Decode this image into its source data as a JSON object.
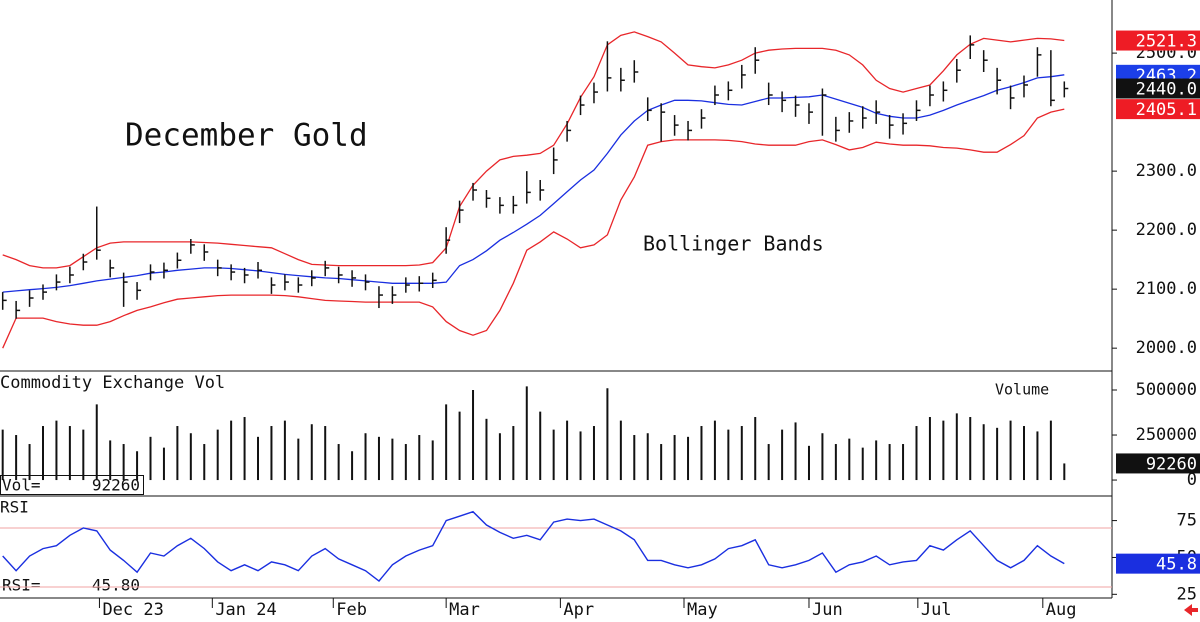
{
  "chart_data": [
    {
      "type": "ohlc",
      "title": "December Gold",
      "annotation": "Bollinger Bands",
      "ylim": [
        1963,
        2590
      ],
      "yticks": [
        {
          "value": 2000,
          "label": "2000.0"
        },
        {
          "value": 2100,
          "label": "2100.0"
        },
        {
          "value": 2200,
          "label": "2200.0"
        },
        {
          "value": 2300,
          "label": "2300.0"
        },
        {
          "value": 2500,
          "label": "2500.0"
        }
      ],
      "color": "#111111",
      "band_color": "#e8262a",
      "mid_color": "#1a2fe0",
      "high": [
        2095,
        2080,
        2098,
        2108,
        2125,
        2138,
        2160,
        2240,
        2150,
        2128,
        2112,
        2142,
        2145,
        2162,
        2185,
        2176,
        2150,
        2142,
        2136,
        2146,
        2120,
        2125,
        2120,
        2132,
        2148,
        2138,
        2132,
        2125,
        2105,
        2105,
        2120,
        2122,
        2128,
        2205,
        2250,
        2280,
        2268,
        2256,
        2258,
        2300,
        2285,
        2340,
        2385,
        2428,
        2450,
        2520,
        2475,
        2488,
        2425,
        2415,
        2395,
        2385,
        2405,
        2445,
        2452,
        2480,
        2510,
        2450,
        2435,
        2428,
        2415,
        2440,
        2392,
        2400,
        2410,
        2420,
        2395,
        2398,
        2420,
        2445,
        2452,
        2490,
        2530,
        2505,
        2475,
        2445,
        2462,
        2510,
        2505,
        2452
      ],
      "low": [
        2065,
        2050,
        2070,
        2082,
        2098,
        2110,
        2132,
        2150,
        2120,
        2070,
        2082,
        2115,
        2118,
        2135,
        2160,
        2148,
        2122,
        2115,
        2110,
        2118,
        2092,
        2098,
        2094,
        2105,
        2122,
        2110,
        2104,
        2098,
        2068,
        2075,
        2094,
        2096,
        2102,
        2160,
        2212,
        2250,
        2238,
        2228,
        2228,
        2245,
        2250,
        2295,
        2350,
        2395,
        2415,
        2435,
        2435,
        2450,
        2385,
        2350,
        2360,
        2352,
        2372,
        2412,
        2420,
        2440,
        2465,
        2412,
        2400,
        2392,
        2380,
        2360,
        2350,
        2365,
        2372,
        2380,
        2355,
        2362,
        2385,
        2410,
        2418,
        2450,
        2490,
        2468,
        2430,
        2405,
        2425,
        2460,
        2410,
        2425
      ],
      "close": [
        2081,
        2064,
        2085,
        2095,
        2112,
        2124,
        2146,
        2166,
        2136,
        2112,
        2098,
        2129,
        2132,
        2149,
        2175,
        2163,
        2136,
        2129,
        2124,
        2132,
        2107,
        2112,
        2107,
        2119,
        2136,
        2124,
        2119,
        2112,
        2090,
        2090,
        2107,
        2110,
        2115,
        2183,
        2234,
        2268,
        2254,
        2242,
        2242,
        2264,
        2268,
        2319,
        2369,
        2412,
        2434,
        2458,
        2454,
        2468,
        2403,
        2400,
        2378,
        2369,
        2390,
        2429,
        2437,
        2463,
        2488,
        2429,
        2420,
        2412,
        2400,
        2429,
        2369,
        2385,
        2390,
        2400,
        2378,
        2381,
        2403,
        2429,
        2437,
        2471,
        2514,
        2488,
        2454,
        2424,
        2446,
        2497,
        2420,
        2440
      ],
      "upper": [
        2158,
        2150,
        2140,
        2136,
        2136,
        2140,
        2155,
        2170,
        2178,
        2180,
        2180,
        2180,
        2180,
        2180,
        2180,
        2179,
        2178,
        2176,
        2174,
        2172,
        2170,
        2160,
        2150,
        2142,
        2141,
        2140,
        2140,
        2140,
        2140,
        2140,
        2140,
        2141,
        2145,
        2170,
        2240,
        2276,
        2300,
        2319,
        2325,
        2327,
        2330,
        2344,
        2380,
        2425,
        2460,
        2514,
        2530,
        2536,
        2528,
        2519,
        2500,
        2480,
        2477,
        2475,
        2480,
        2488,
        2500,
        2505,
        2507,
        2508,
        2508,
        2508,
        2505,
        2497,
        2480,
        2454,
        2440,
        2434,
        2440,
        2446,
        2470,
        2497,
        2515,
        2525,
        2522,
        2519,
        2522,
        2525,
        2524,
        2521.3
      ],
      "middle": [
        2095,
        2097,
        2099,
        2101,
        2103,
        2106,
        2110,
        2114,
        2117,
        2120,
        2123,
        2127,
        2129,
        2132,
        2134,
        2136,
        2136,
        2135,
        2133,
        2131,
        2128,
        2125,
        2123,
        2121,
        2119,
        2118,
        2116,
        2114,
        2112,
        2110,
        2110,
        2110,
        2110,
        2112,
        2140,
        2150,
        2165,
        2183,
        2196,
        2210,
        2225,
        2245,
        2265,
        2285,
        2302,
        2330,
        2361,
        2385,
        2403,
        2412,
        2420,
        2420,
        2419,
        2416,
        2413,
        2412,
        2418,
        2424,
        2424,
        2425,
        2426,
        2429,
        2422,
        2415,
        2408,
        2398,
        2393,
        2390,
        2390,
        2395,
        2403,
        2412,
        2420,
        2428,
        2437,
        2443,
        2450,
        2458,
        2460,
        2463.2
      ],
      "lower": [
        2000,
        2051,
        2051,
        2051,
        2045,
        2041,
        2039,
        2039,
        2045,
        2055,
        2064,
        2070,
        2077,
        2083,
        2085,
        2087,
        2089,
        2090,
        2090,
        2090,
        2090,
        2089,
        2087,
        2084,
        2081,
        2080,
        2079,
        2078,
        2078,
        2078,
        2078,
        2078,
        2070,
        2045,
        2030,
        2022,
        2030,
        2064,
        2110,
        2166,
        2180,
        2197,
        2185,
        2170,
        2175,
        2192,
        2251,
        2290,
        2344,
        2350,
        2353,
        2353,
        2353,
        2353,
        2352,
        2350,
        2346,
        2344,
        2344,
        2344,
        2350,
        2353,
        2345,
        2336,
        2340,
        2349,
        2346,
        2344,
        2344,
        2343,
        2340,
        2339,
        2336,
        2332,
        2332,
        2345,
        2360,
        2390,
        2400,
        2405.1
      ],
      "boxes": [
        {
          "value": 2521.3,
          "label": "2521.3",
          "color": "#ee1c25"
        },
        {
          "value": 2463.2,
          "label": "2463.2",
          "color": "#1c3fe8"
        },
        {
          "value": 2440,
          "label": "2440.0",
          "color": "#111111"
        },
        {
          "value": 2405.1,
          "label": "2405.1",
          "color": "#ee1c25"
        }
      ]
    },
    {
      "type": "bar",
      "title": "Commodity Exchange Vol",
      "legend": "Volume",
      "ylim": [
        -83000,
        600000
      ],
      "yticks": [
        0,
        250000,
        500000
      ],
      "color": "#111111",
      "values": [
        280000,
        250000,
        200000,
        300000,
        330000,
        300000,
        280000,
        420000,
        220000,
        200000,
        160000,
        240000,
        180000,
        300000,
        260000,
        200000,
        280000,
        330000,
        350000,
        240000,
        300000,
        330000,
        230000,
        310000,
        300000,
        200000,
        160000,
        260000,
        240000,
        230000,
        200000,
        250000,
        220000,
        420000,
        380000,
        500000,
        340000,
        260000,
        300000,
        520000,
        380000,
        280000,
        330000,
        270000,
        300000,
        510000,
        330000,
        250000,
        260000,
        200000,
        250000,
        240000,
        300000,
        330000,
        280000,
        300000,
        350000,
        200000,
        280000,
        320000,
        190000,
        260000,
        200000,
        230000,
        180000,
        220000,
        200000,
        200000,
        300000,
        350000,
        330000,
        370000,
        350000,
        310000,
        290000,
        330000,
        300000,
        270000,
        330000,
        92260
      ],
      "readout": {
        "label": "Vol=",
        "value": 92260
      },
      "box": 92260
    },
    {
      "type": "line",
      "title": "RSI",
      "ylim": [
        22.5,
        91
      ],
      "yticks": [
        25,
        50,
        75
      ],
      "ref_lines": [
        30,
        70
      ],
      "color": "#1a2fe0",
      "ref_color": "#f2a3a3",
      "values": [
        51,
        41,
        51,
        56,
        58,
        65,
        70,
        68,
        55,
        48,
        40,
        53,
        51,
        58,
        63,
        56,
        47,
        41,
        45,
        41,
        47,
        45,
        41,
        51,
        56,
        49,
        45,
        41,
        34,
        45,
        51,
        55,
        58,
        75,
        78,
        81,
        72,
        67,
        63,
        65,
        62,
        74,
        76,
        75,
        76,
        72,
        68,
        62,
        48,
        48,
        45,
        43,
        45,
        49,
        56,
        58,
        62,
        45,
        43,
        45,
        48,
        53,
        40,
        45,
        47,
        51,
        45,
        47,
        48,
        58,
        55,
        62,
        68,
        58,
        48,
        43,
        48,
        58,
        51,
        45.8
      ],
      "readout": {
        "label": "RSI=",
        "value": {
          "value": 45.8,
          "label": "45.80"
        }
      },
      "box": 45.8,
      "xlim": [
        -0.2,
        82.4
      ],
      "xticks": [
        {
          "value": 7.2,
          "label": "Dec 23"
        },
        {
          "value": 15.6,
          "label": "Jan 24"
        },
        {
          "value": 24.6,
          "label": "Feb"
        },
        {
          "value": 33.0,
          "label": "Mar"
        },
        {
          "value": 41.5,
          "label": "Apr"
        },
        {
          "value": 50.7,
          "label": "May"
        },
        {
          "value": 60.0,
          "label": "Jun"
        },
        {
          "value": 68.1,
          "label": "Jul"
        },
        {
          "value": 77.4,
          "label": "Aug"
        }
      ]
    }
  ]
}
